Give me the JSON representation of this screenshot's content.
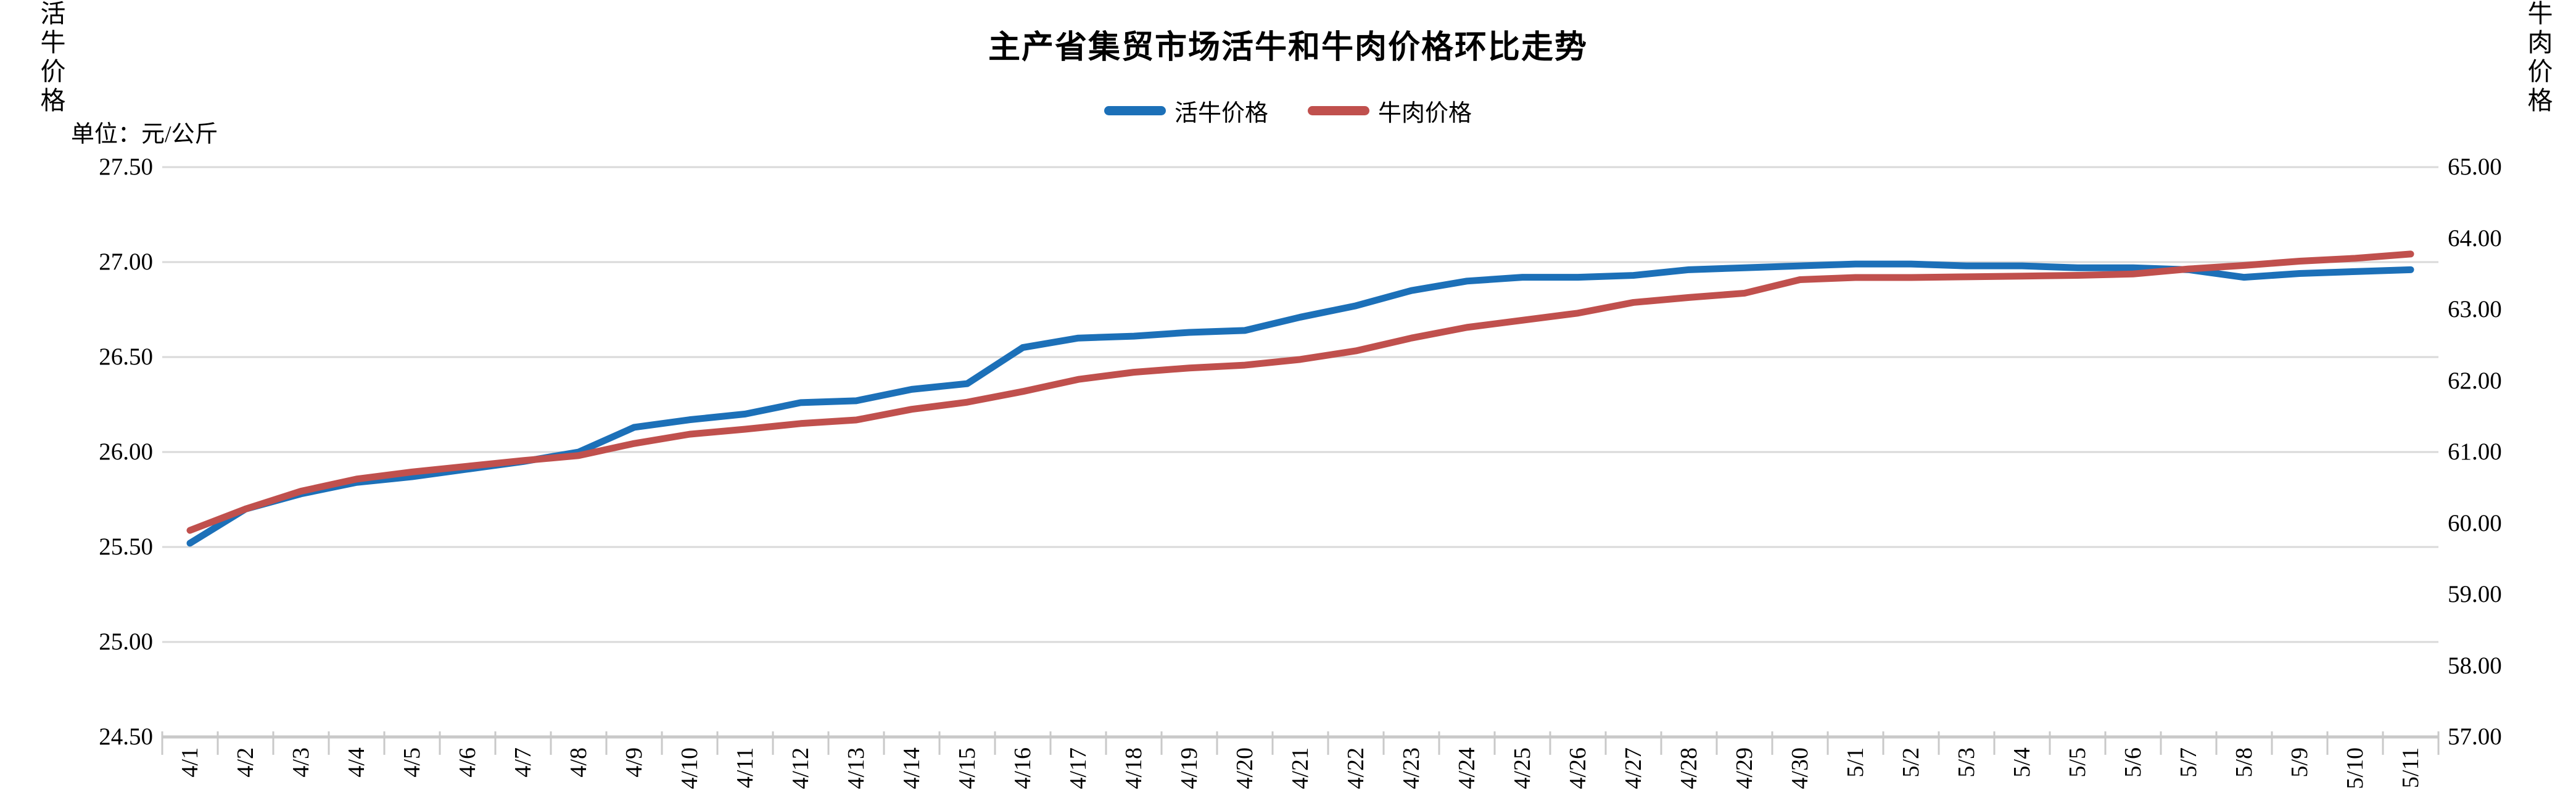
{
  "header": {
    "title": "主产省集贸市场活牛和牛肉价格环比走势",
    "unit_label": "单位：元/公斤"
  },
  "legend": [
    {
      "label": "活牛价格",
      "color": "#1c70b8"
    },
    {
      "label": "牛肉价格",
      "color": "#c0504d"
    }
  ],
  "colors": {
    "live_cattle_line": "#1c70b8",
    "beef_line": "#c0504d",
    "gridline": "#d9d9d9",
    "axis_line": "#c9c9c9"
  },
  "chart_data": {
    "type": "line",
    "title": "主产省集贸市场活牛和牛肉价格环比走势",
    "grid": true,
    "legend_position": "top",
    "categories": [
      "4/1",
      "4/2",
      "4/3",
      "4/4",
      "4/5",
      "4/6",
      "4/7",
      "4/8",
      "4/9",
      "4/10",
      "4/11",
      "4/12",
      "4/13",
      "4/14",
      "4/15",
      "4/16",
      "4/17",
      "4/18",
      "4/19",
      "4/20",
      "4/21",
      "4/22",
      "4/23",
      "4/24",
      "4/25",
      "4/26",
      "4/27",
      "4/28",
      "4/29",
      "4/30",
      "5/1",
      "5/2",
      "5/3",
      "5/4",
      "5/5",
      "5/6",
      "5/7",
      "5/8",
      "5/9",
      "5/10",
      "5/11"
    ],
    "left_axis": {
      "title": "活牛价格",
      "min": 24.5,
      "max": 27.5,
      "ticks": [
        "27.50",
        "27.00",
        "26.50",
        "26.00",
        "25.50",
        "25.00",
        "24.50"
      ]
    },
    "right_axis": {
      "title": "牛肉价格",
      "min": 57,
      "max": 65,
      "ticks": [
        "65.00",
        "64.00",
        "63.00",
        "62.00",
        "61.00",
        "60.00",
        "59.00",
        "58.00",
        "57.00"
      ]
    },
    "series": [
      {
        "name": "活牛价格",
        "axis": "left",
        "color": "#1c70b8",
        "values": [
          25.52,
          25.7,
          25.78,
          25.84,
          25.87,
          25.91,
          25.95,
          26.0,
          26.13,
          26.17,
          26.2,
          26.26,
          26.27,
          26.33,
          26.36,
          26.55,
          26.6,
          26.61,
          26.63,
          26.64,
          26.71,
          26.77,
          26.85,
          26.9,
          26.92,
          26.92,
          26.93,
          26.96,
          26.97,
          26.98,
          26.99,
          26.99,
          26.98,
          26.98,
          26.97,
          26.97,
          26.96,
          26.92,
          26.94,
          26.95,
          26.96
        ]
      },
      {
        "name": "牛肉价格",
        "axis": "right",
        "color": "#c0504d",
        "values": [
          59.9,
          60.2,
          60.45,
          60.62,
          60.72,
          60.8,
          60.88,
          60.95,
          61.12,
          61.25,
          61.32,
          61.4,
          61.45,
          61.6,
          61.7,
          61.85,
          62.02,
          62.12,
          62.18,
          62.22,
          62.3,
          62.42,
          62.6,
          62.75,
          62.85,
          62.95,
          63.1,
          63.17,
          63.23,
          63.42,
          63.45,
          63.45,
          63.46,
          63.47,
          63.48,
          63.5,
          63.57,
          63.62,
          63.68,
          63.72,
          63.78
        ]
      }
    ]
  }
}
